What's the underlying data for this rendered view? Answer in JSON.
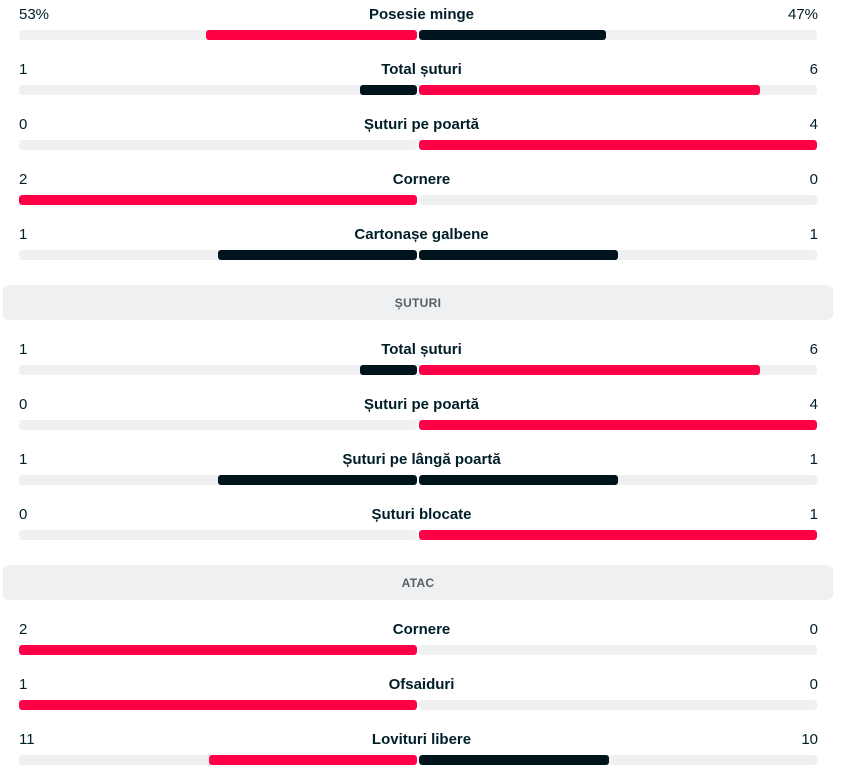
{
  "colors": {
    "leader": "#ff0046",
    "trailer": "#00141e",
    "track": "#eef0f1",
    "section_bg": "#eef0f1"
  },
  "groups": [
    {
      "header": "",
      "rows": [
        {
          "label": "Posesie minge",
          "home": "53%",
          "away": "47%",
          "home_share": 0.53,
          "away_share": 0.47,
          "leader": "home"
        },
        {
          "label": "Total șuturi",
          "home": "1",
          "away": "6",
          "home_share": 0.1429,
          "away_share": 0.8571,
          "leader": "away"
        },
        {
          "label": "Șuturi pe poartă",
          "home": "0",
          "away": "4",
          "home_share": 0,
          "away_share": 1,
          "leader": "away"
        },
        {
          "label": "Cornere",
          "home": "2",
          "away": "0",
          "home_share": 1,
          "away_share": 0,
          "leader": "home"
        },
        {
          "label": "Cartonașe galbene",
          "home": "1",
          "away": "1",
          "home_share": 0.5,
          "away_share": 0.5,
          "leader": "none"
        }
      ]
    },
    {
      "header": "ȘUTURI",
      "rows": [
        {
          "label": "Total șuturi",
          "home": "1",
          "away": "6",
          "home_share": 0.1429,
          "away_share": 0.8571,
          "leader": "away"
        },
        {
          "label": "Șuturi pe poartă",
          "home": "0",
          "away": "4",
          "home_share": 0,
          "away_share": 1,
          "leader": "away"
        },
        {
          "label": "Șuturi pe lângă poartă",
          "home": "1",
          "away": "1",
          "home_share": 0.5,
          "away_share": 0.5,
          "leader": "none"
        },
        {
          "label": "Șuturi blocate",
          "home": "0",
          "away": "1",
          "home_share": 0,
          "away_share": 1,
          "leader": "away"
        }
      ]
    },
    {
      "header": "ATAC",
      "rows": [
        {
          "label": "Cornere",
          "home": "2",
          "away": "0",
          "home_share": 1,
          "away_share": 0,
          "leader": "home"
        },
        {
          "label": "Ofsaiduri",
          "home": "1",
          "away": "0",
          "home_share": 1,
          "away_share": 0,
          "leader": "home"
        },
        {
          "label": "Lovituri libere",
          "home": "11",
          "away": "10",
          "home_share": 0.5238,
          "away_share": 0.4762,
          "leader": "home"
        }
      ]
    }
  ]
}
